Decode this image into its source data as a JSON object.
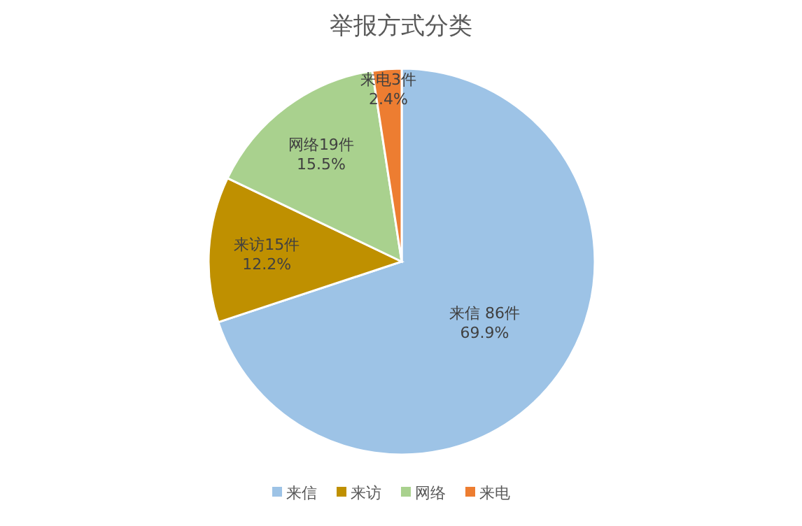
{
  "chart_data": {
    "type": "pie",
    "title": "举报方式分类",
    "categories": [
      "来信",
      "来访",
      "网络",
      "来电"
    ],
    "values": [
      86,
      15,
      19,
      3
    ],
    "colors": [
      "#9dc3e6",
      "#bf9000",
      "#a9d18e",
      "#ed7d31"
    ],
    "value_labels": [
      "来信 86件\n69.9%",
      "来访15件\n12.2%",
      "网络19件\n15.5%",
      "来电3件\n2.4%"
    ],
    "legend": "bottom"
  }
}
